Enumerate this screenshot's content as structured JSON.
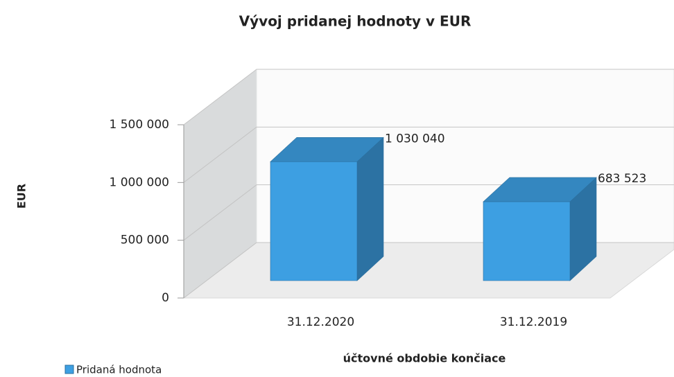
{
  "chart_data": {
    "type": "bar3d",
    "title": "Vývoj pridanej hodnoty v EUR",
    "x_label": "účtovné obdobie končiace",
    "y_label": "EUR",
    "categories": [
      "31.12.2020",
      "31.12.2019"
    ],
    "series": [
      {
        "name": "Pridaná hodnota",
        "color": "#3d9fe2",
        "values": [
          1030040,
          683523
        ],
        "value_labels": [
          "1 030 040",
          "683 523"
        ]
      }
    ],
    "ylim": [
      0,
      1500000
    ],
    "yticks": [
      0,
      {
        "value": 500000,
        "label": "500 000"
      },
      {
        "value": 1000000,
        "label": "1 000 000"
      },
      {
        "value": 1500000,
        "label": "1 500 000"
      }
    ],
    "grid": true,
    "legend": "bottom-left"
  }
}
